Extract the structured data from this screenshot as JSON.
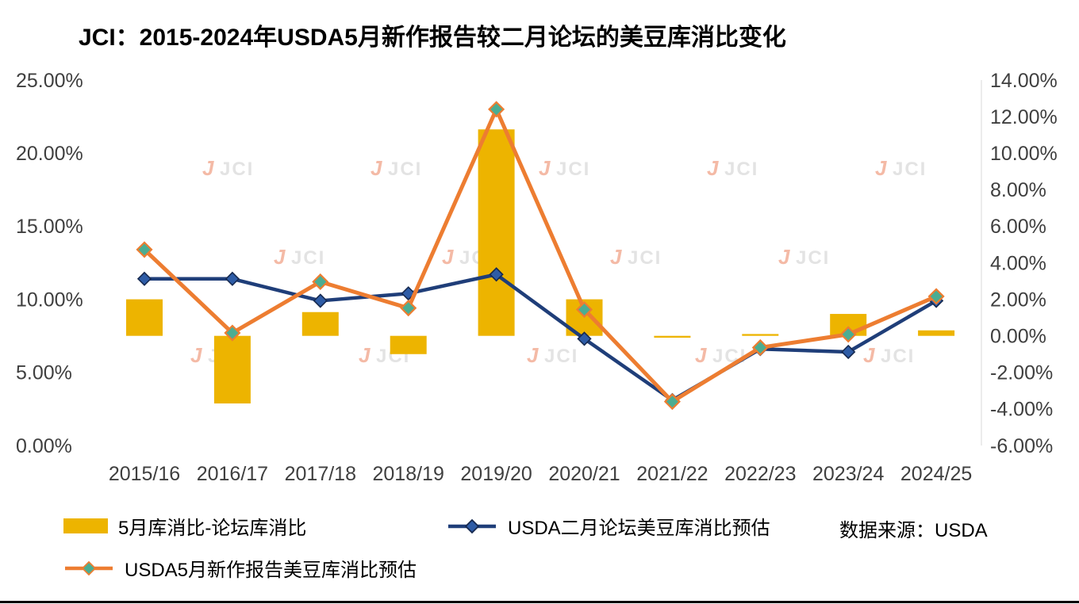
{
  "title": "JCI：2015-2024年USDA5月新作报告较二月论坛的美豆库消比变化",
  "source_note": "数据来源：USDA",
  "watermark": {
    "mark": "J",
    "text": "JCI"
  },
  "colors": {
    "axis_text": "#3F3F3F",
    "watermark_mark": "#E8683C",
    "watermark_text": "#C2C2C2",
    "right_axis_line": "#D9D9D9",
    "bottom_border": "#000000"
  },
  "chart_data": {
    "type": "combo (bar + dual-axis line)",
    "categories": [
      "2015/16",
      "2016/17",
      "2017/18",
      "2018/19",
      "2019/20",
      "2020/21",
      "2021/22",
      "2022/23",
      "2023/24",
      "2024/25"
    ],
    "series": [
      {
        "name": "5月库消比-论坛库消比",
        "type": "bar",
        "axis": "right",
        "color": "#EDB400",
        "values": [
          2.0,
          -3.7,
          1.3,
          -1.0,
          11.3,
          2.0,
          -0.1,
          0.1,
          1.2,
          0.3
        ]
      },
      {
        "name": "USDA二月论坛美豆库消比预估",
        "type": "line",
        "axis": "left",
        "color": "#1F3E79",
        "marker_fill": "#2E5CA6",
        "marker_stroke": "#16294F",
        "values": [
          11.4,
          11.4,
          9.9,
          10.4,
          11.7,
          7.3,
          3.1,
          6.6,
          6.4,
          9.9
        ]
      },
      {
        "name": "USDA5月新作报告美豆库消比预估",
        "type": "line",
        "axis": "left",
        "color": "#ED7D31",
        "marker_fill": "#4BAD92",
        "marker_stroke": "#ED7D31",
        "values": [
          13.4,
          7.7,
          11.2,
          9.4,
          23.0,
          9.3,
          3.0,
          6.7,
          7.6,
          10.2
        ]
      }
    ],
    "left_axis": {
      "min": 0,
      "max": 25,
      "unit": "%",
      "ticks": [
        "0.00%",
        "5.00%",
        "10.00%",
        "15.00%",
        "20.00%",
        "25.00%"
      ]
    },
    "right_axis": {
      "min": -6,
      "max": 14,
      "unit": "%",
      "ticks": [
        "-6.00%",
        "-4.00%",
        "-2.00%",
        "0.00%",
        "2.00%",
        "4.00%",
        "6.00%",
        "8.00%",
        "10.00%",
        "12.00%",
        "14.00%"
      ]
    },
    "legend_position": "bottom",
    "grid": false
  }
}
